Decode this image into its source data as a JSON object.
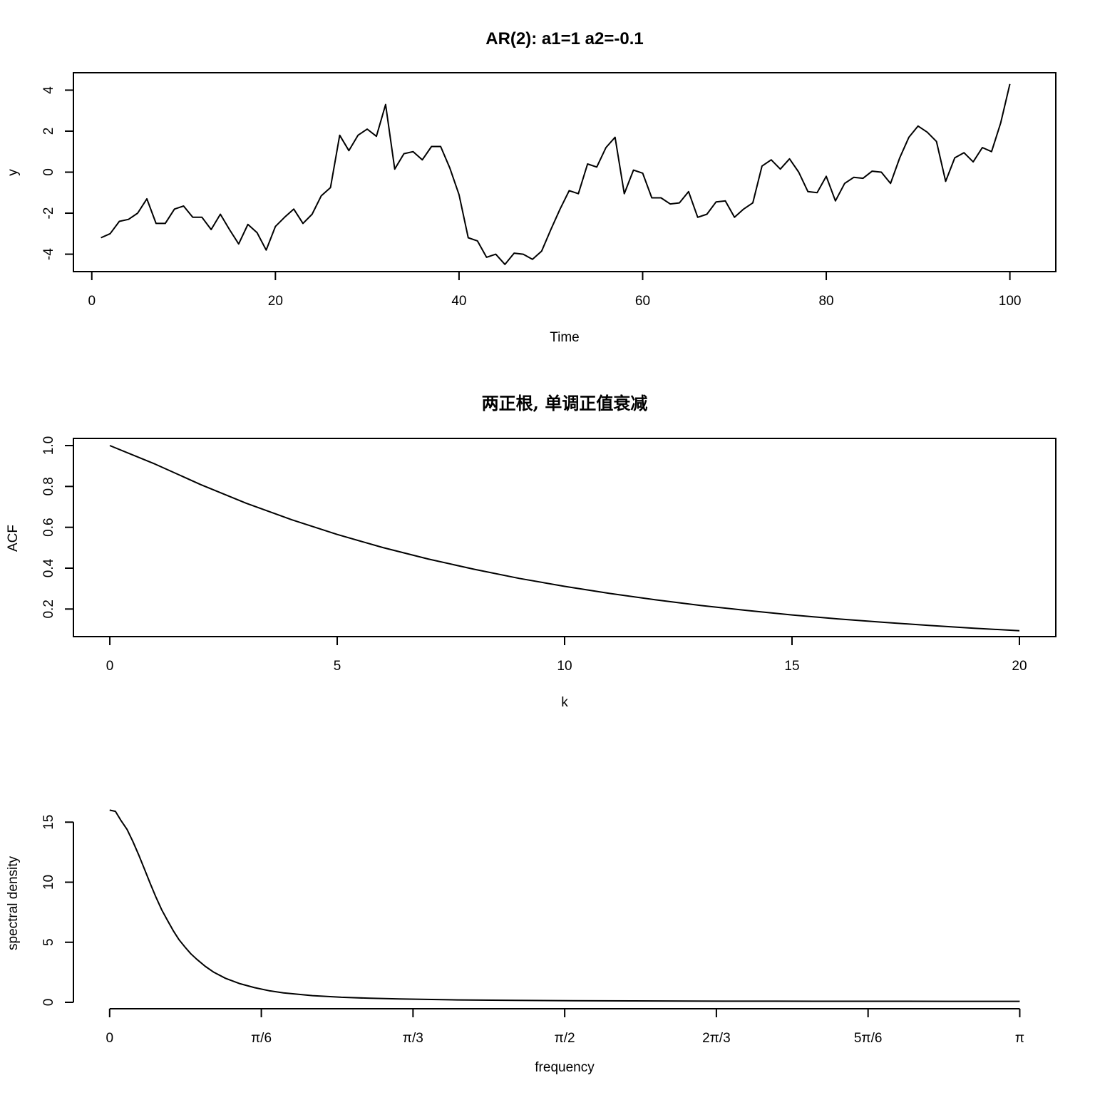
{
  "chart_data": [
    {
      "type": "line",
      "title": "AR(2): a1=1 a2=-0.1",
      "xlabel": "Time",
      "ylabel": "y",
      "xlim": [
        -2,
        105
      ],
      "ylim": [
        -4.85,
        4.85
      ],
      "box": true,
      "xticks": [
        {
          "value": 0,
          "label": "0"
        },
        {
          "value": 20,
          "label": "20"
        },
        {
          "value": 40,
          "label": "40"
        },
        {
          "value": 60,
          "label": "60"
        },
        {
          "value": 80,
          "label": "80"
        },
        {
          "value": 100,
          "label": "100"
        }
      ],
      "yticks": [
        {
          "value": -4,
          "label": "-4"
        },
        {
          "value": -2,
          "label": "-2"
        },
        {
          "value": 0,
          "label": "0"
        },
        {
          "value": 2,
          "label": "2"
        },
        {
          "value": 4,
          "label": "4"
        }
      ],
      "series": [
        {
          "x": [
            1,
            2,
            3,
            4,
            5,
            6,
            7,
            8,
            9,
            10,
            11,
            12,
            13,
            14,
            15,
            16,
            17,
            18,
            19,
            20,
            21,
            22,
            23,
            24,
            25,
            26,
            27,
            28,
            29,
            30,
            31,
            32,
            33,
            34,
            35,
            36,
            37,
            38,
            39,
            40,
            41,
            42,
            43,
            44,
            45,
            46,
            47,
            48,
            49,
            50,
            51,
            52,
            53,
            54,
            55,
            56,
            57,
            58,
            59,
            60,
            61,
            62,
            63,
            64,
            65,
            66,
            67,
            68,
            69,
            70,
            71,
            72,
            73,
            74,
            75,
            76,
            77,
            78,
            79,
            80,
            81,
            82,
            83,
            84,
            85,
            86,
            87,
            88,
            89,
            90,
            91,
            92,
            93,
            94,
            95,
            96,
            97,
            98,
            99,
            100
          ],
          "y": [
            -3.2,
            -3.0,
            -2.4,
            -2.3,
            -2.0,
            -1.3,
            -2.5,
            -2.5,
            -1.8,
            -1.65,
            -2.2,
            -2.2,
            -2.8,
            -2.05,
            -2.8,
            -3.5,
            -2.55,
            -2.95,
            -3.8,
            -2.65,
            -2.2,
            -1.8,
            -2.5,
            -2.05,
            -1.15,
            -0.75,
            1.8,
            1.05,
            1.8,
            2.1,
            1.75,
            3.3,
            0.15,
            0.9,
            1.0,
            0.6,
            1.25,
            1.25,
            0.2,
            -1.1,
            -3.2,
            -3.35,
            -4.15,
            -4.0,
            -4.5,
            -3.95,
            -4.0,
            -4.25,
            -3.85,
            -2.8,
            -1.8,
            -0.9,
            -1.05,
            0.4,
            0.25,
            1.2,
            1.7,
            -1.05,
            0.1,
            -0.05,
            -1.25,
            -1.25,
            -1.55,
            -1.5,
            -0.95,
            -2.2,
            -2.05,
            -1.45,
            -1.4,
            -2.2,
            -1.8,
            -1.5,
            0.3,
            0.6,
            0.15,
            0.65,
            0.0,
            -0.95,
            -1.0,
            -0.2,
            -1.4,
            -0.55,
            -0.25,
            -0.3,
            0.05,
            0.0,
            -0.55,
            0.7,
            1.7,
            2.25,
            1.95,
            1.5,
            -0.45,
            0.7,
            0.95,
            0.5,
            1.2,
            1.0,
            2.4,
            4.3
          ]
        }
      ]
    },
    {
      "type": "line",
      "title": "两正根, 单调正值衰减",
      "xlabel": "k",
      "ylabel": "ACF",
      "xlim": [
        -0.8,
        20.8
      ],
      "ylim": [
        0.065,
        1.035
      ],
      "box": true,
      "xticks": [
        {
          "value": 0,
          "label": "0"
        },
        {
          "value": 5,
          "label": "5"
        },
        {
          "value": 10,
          "label": "10"
        },
        {
          "value": 15,
          "label": "15"
        },
        {
          "value": 20,
          "label": "20"
        }
      ],
      "yticks": [
        {
          "value": 0.2,
          "label": "0.2"
        },
        {
          "value": 0.4,
          "label": "0.4"
        },
        {
          "value": 0.6,
          "label": "0.6"
        },
        {
          "value": 0.8,
          "label": "0.8"
        },
        {
          "value": 1.0,
          "label": "1.0"
        }
      ],
      "series": [
        {
          "x": [
            0,
            1,
            2,
            3,
            4,
            5,
            6,
            7,
            8,
            9,
            10,
            11,
            12,
            13,
            14,
            15,
            16,
            17,
            18,
            19,
            20
          ],
          "y": [
            1.0,
            0.909,
            0.809,
            0.718,
            0.637,
            0.565,
            0.501,
            0.445,
            0.395,
            0.35,
            0.311,
            0.276,
            0.245,
            0.217,
            0.193,
            0.171,
            0.152,
            0.135,
            0.12,
            0.106,
            0.094
          ]
        }
      ]
    },
    {
      "type": "line",
      "title": "",
      "xlabel": "frequency",
      "ylabel": "spectral density",
      "xlim": [
        -0.125,
        3.266
      ],
      "ylim": [
        0,
        16.5
      ],
      "box": false,
      "xticks": [
        {
          "value": 0,
          "label": "0"
        },
        {
          "value": 0.5236,
          "label": "π/6"
        },
        {
          "value": 1.0472,
          "label": "π/3"
        },
        {
          "value": 1.5708,
          "label": "π/2"
        },
        {
          "value": 2.0944,
          "label": "2π/3"
        },
        {
          "value": 2.618,
          "label": "5π/6"
        },
        {
          "value": 3.1416,
          "label": "π"
        }
      ],
      "yticks": [
        {
          "value": 0,
          "label": "0"
        },
        {
          "value": 5,
          "label": "5"
        },
        {
          "value": 10,
          "label": "10"
        },
        {
          "value": 15,
          "label": "15"
        }
      ],
      "series": [
        {
          "x": [
            0.0,
            0.02,
            0.04,
            0.06,
            0.08,
            0.1,
            0.12,
            0.14,
            0.16,
            0.18,
            0.2,
            0.22,
            0.24,
            0.26,
            0.28,
            0.3,
            0.33,
            0.36,
            0.4,
            0.45,
            0.5,
            0.55,
            0.6,
            0.7,
            0.8,
            0.9,
            1.0,
            1.2,
            1.4,
            1.6,
            1.8,
            2.0,
            2.3,
            2.6,
            2.9,
            3.1416
          ],
          "y": [
            16.0,
            15.9,
            15.1,
            14.4,
            13.4,
            12.3,
            11.1,
            9.9,
            8.75,
            7.7,
            6.8,
            5.95,
            5.2,
            4.6,
            4.05,
            3.6,
            3.0,
            2.5,
            2.0,
            1.55,
            1.22,
            0.97,
            0.79,
            0.56,
            0.42,
            0.34,
            0.28,
            0.2,
            0.16,
            0.13,
            0.12,
            0.1,
            0.095,
            0.09,
            0.085,
            0.083
          ]
        }
      ]
    }
  ]
}
